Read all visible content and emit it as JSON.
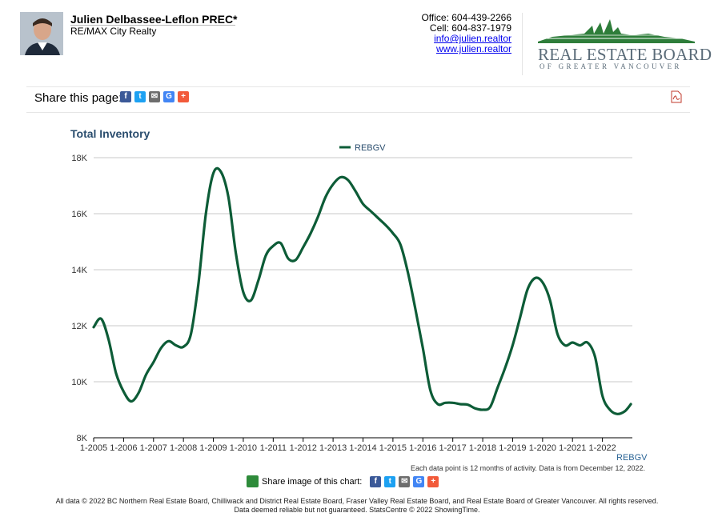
{
  "agent": {
    "name": "Julien Delbassee-Leflon PREC*",
    "company": "RE/MAX City Realty",
    "office": "Office: 604-439-2266",
    "cell": "Cell: 604-837-1979",
    "email": "info@julien.realtor",
    "website": "www.julien.realtor"
  },
  "board": {
    "name": "REAL ESTATE BOARD",
    "subtitle": "OF GREATER VANCOUVER",
    "color": "#2e7d3a"
  },
  "share": {
    "label": "Share this page:",
    "chart_label": "Share image of this chart:",
    "icons": [
      "facebook-icon",
      "twitter-icon",
      "email-icon",
      "google-icon",
      "plus-icon"
    ]
  },
  "note": "Each data point is 12 months of activity. Data is from December 12, 2022.",
  "footer": {
    "line1": "All data © 2022 BC Northern Real Estate Board, Chilliwack and District Real Estate Board, Fraser Valley Real Estate Board, and Real Estate Board of Greater Vancouver. All rights reserved.",
    "line2": "Data deemed reliable but not guaranteed. StatsCentre © 2022 ShowingTime."
  },
  "chart_data": {
    "type": "line",
    "title": "Total Inventory",
    "legend_position": "top-center",
    "series_color": "#0d5c37",
    "grid": true,
    "ylim": [
      8000,
      18000
    ],
    "yticks": [
      "8K",
      "10K",
      "12K",
      "14K",
      "16K",
      "18K"
    ],
    "xticks": [
      "1-2005",
      "1-2006",
      "1-2007",
      "1-2008",
      "1-2009",
      "1-2010",
      "1-2011",
      "1-2012",
      "1-2013",
      "1-2014",
      "1-2015",
      "1-2016",
      "1-2017",
      "1-2018",
      "1-2019",
      "1-2020",
      "1-2021",
      "1-2022"
    ],
    "x_foot_label": "REBGV",
    "series": [
      {
        "name": "REBGV",
        "points": [
          [
            2005.0,
            11950
          ],
          [
            2005.25,
            12250
          ],
          [
            2005.5,
            11500
          ],
          [
            2005.75,
            10300
          ],
          [
            2006.0,
            9650
          ],
          [
            2006.25,
            9300
          ],
          [
            2006.5,
            9600
          ],
          [
            2006.75,
            10250
          ],
          [
            2007.0,
            10700
          ],
          [
            2007.25,
            11200
          ],
          [
            2007.5,
            11450
          ],
          [
            2007.75,
            11300
          ],
          [
            2008.0,
            11250
          ],
          [
            2008.25,
            11700
          ],
          [
            2008.5,
            13500
          ],
          [
            2008.75,
            16000
          ],
          [
            2009.0,
            17450
          ],
          [
            2009.25,
            17500
          ],
          [
            2009.5,
            16600
          ],
          [
            2009.75,
            14600
          ],
          [
            2010.0,
            13200
          ],
          [
            2010.25,
            12900
          ],
          [
            2010.5,
            13600
          ],
          [
            2010.75,
            14500
          ],
          [
            2011.0,
            14850
          ],
          [
            2011.25,
            14950
          ],
          [
            2011.5,
            14400
          ],
          [
            2011.75,
            14350
          ],
          [
            2012.0,
            14800
          ],
          [
            2012.25,
            15300
          ],
          [
            2012.5,
            15900
          ],
          [
            2012.75,
            16600
          ],
          [
            2013.0,
            17050
          ],
          [
            2013.25,
            17300
          ],
          [
            2013.5,
            17200
          ],
          [
            2013.75,
            16800
          ],
          [
            2014.0,
            16350
          ],
          [
            2014.25,
            16100
          ],
          [
            2014.5,
            15850
          ],
          [
            2014.75,
            15600
          ],
          [
            2015.0,
            15300
          ],
          [
            2015.25,
            14900
          ],
          [
            2015.5,
            13900
          ],
          [
            2015.75,
            12600
          ],
          [
            2016.0,
            11200
          ],
          [
            2016.25,
            9700
          ],
          [
            2016.5,
            9200
          ],
          [
            2016.75,
            9250
          ],
          [
            2017.0,
            9250
          ],
          [
            2017.25,
            9200
          ],
          [
            2017.5,
            9180
          ],
          [
            2017.75,
            9050
          ],
          [
            2018.0,
            9000
          ],
          [
            2018.25,
            9100
          ],
          [
            2018.5,
            9800
          ],
          [
            2018.75,
            10500
          ],
          [
            2019.0,
            11300
          ],
          [
            2019.25,
            12300
          ],
          [
            2019.5,
            13300
          ],
          [
            2019.75,
            13700
          ],
          [
            2020.0,
            13550
          ],
          [
            2020.25,
            12900
          ],
          [
            2020.5,
            11700
          ],
          [
            2020.75,
            11300
          ],
          [
            2021.0,
            11400
          ],
          [
            2021.25,
            11300
          ],
          [
            2021.5,
            11400
          ],
          [
            2021.75,
            10900
          ],
          [
            2022.0,
            9500
          ],
          [
            2022.25,
            9000
          ],
          [
            2022.5,
            8850
          ],
          [
            2022.75,
            8950
          ],
          [
            2022.95,
            9200
          ]
        ]
      }
    ]
  }
}
